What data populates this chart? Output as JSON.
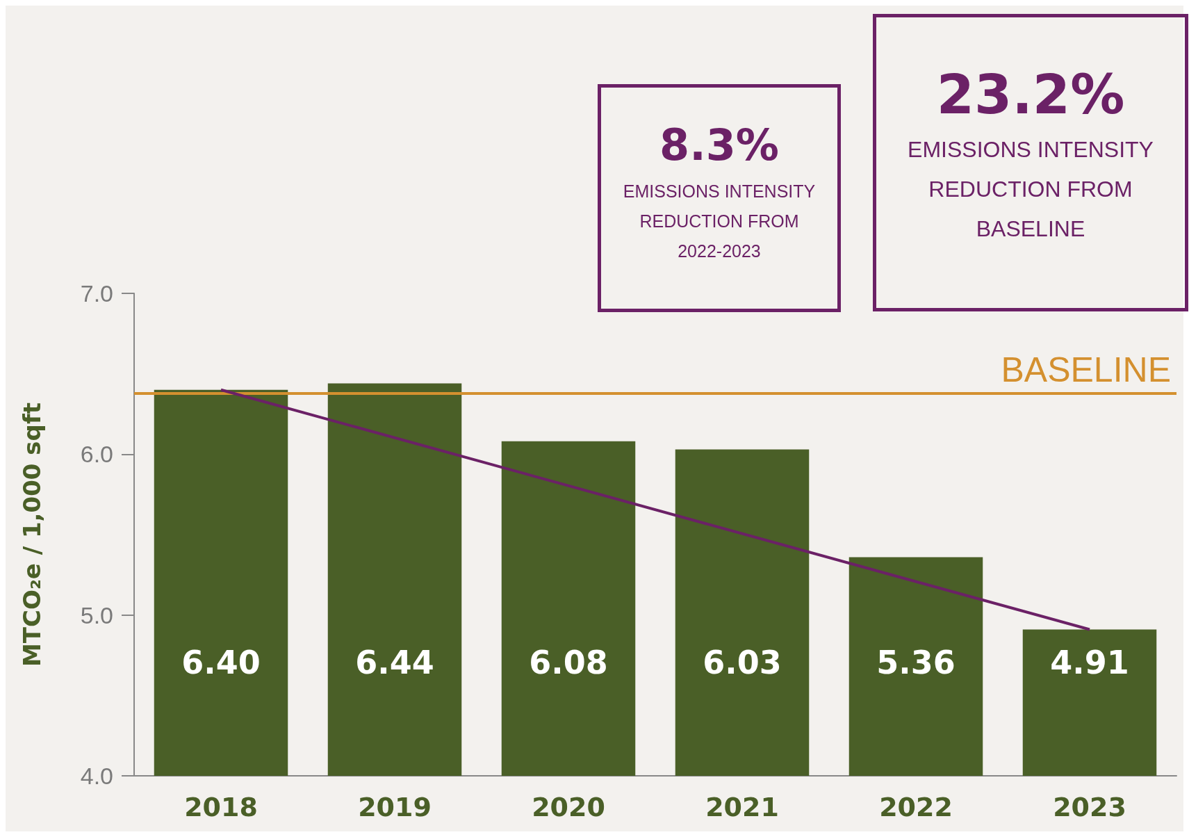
{
  "chart_data": {
    "type": "bar",
    "ylabel": "MTCO₂e / 1,000 sqft",
    "categories": [
      "2018",
      "2019",
      "2020",
      "2021",
      "2022",
      "2023"
    ],
    "series": [
      {
        "color": "#4a5f27",
        "values": [
          6.4,
          6.44,
          6.08,
          6.03,
          5.36,
          4.91
        ],
        "value_labels": [
          "6.40",
          "6.44",
          "6.08",
          "6.03",
          "5.36",
          "4.91"
        ]
      },
      {
        "type": "line",
        "color": "#6b2166",
        "values": [
          6.4,
          null,
          null,
          null,
          null,
          4.91
        ]
      }
    ],
    "ylim": [
      4,
      7
    ],
    "yticks": [
      {
        "value": 4,
        "label": "4.0"
      },
      {
        "value": 5,
        "label": "5.0"
      },
      {
        "value": 6,
        "label": "6.0"
      },
      {
        "value": 7,
        "label": "7.0"
      }
    ],
    "ref_lines": [
      {
        "axis": "y",
        "value": 6.38,
        "label": "BASELINE",
        "color": "#d4902f"
      }
    ],
    "annotations": [
      "8.3%",
      "EMISSIONS INTENSITY REDUCTION FROM 2022-2023",
      "23.2%",
      "EMISSIONS INTENSITY REDUCTION FROM BASELINE"
    ],
    "grid": false
  }
}
